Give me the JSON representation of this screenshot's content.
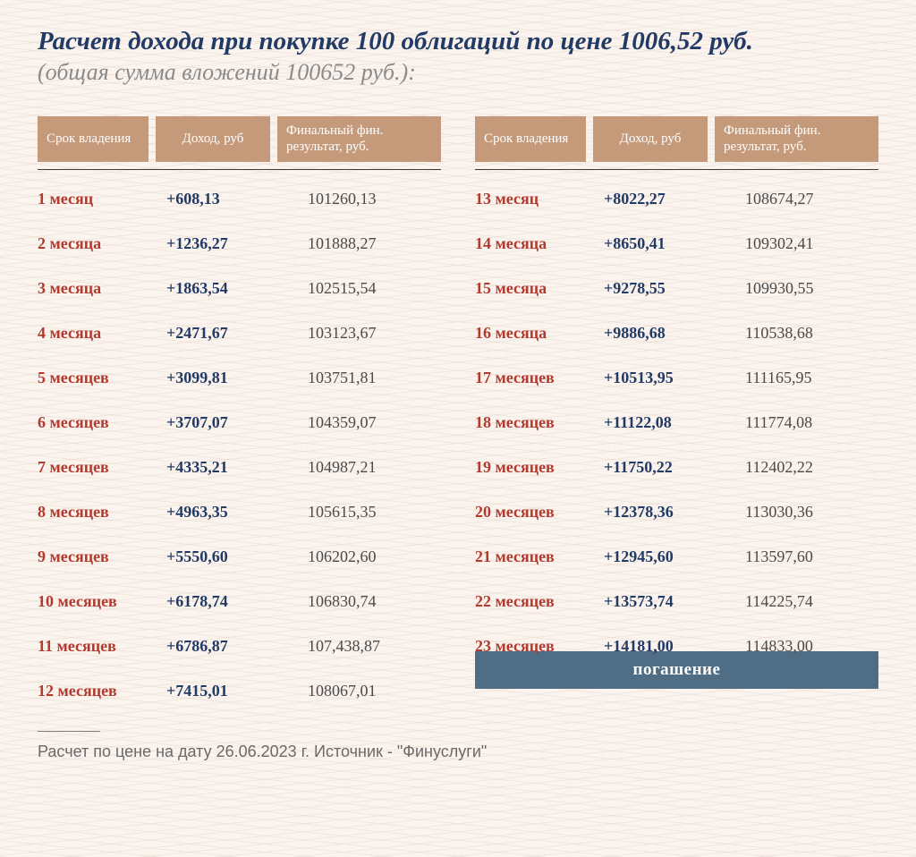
{
  "title": "Расчет дохода при покупке 100 облигаций по цене 1006,52 руб.",
  "subtitle": "(общая сумма вложений 100652 руб.):",
  "headers": {
    "period": "Срок владения",
    "income": "Доход, руб",
    "result": "Финальный фин. результат, руб."
  },
  "left": [
    {
      "period": "1 месяц",
      "income": "+608,13",
      "result": "101260,13"
    },
    {
      "period": "2 месяца",
      "income": "+1236,27",
      "result": "101888,27"
    },
    {
      "period": "3 месяца",
      "income": "+1863,54",
      "result": "102515,54"
    },
    {
      "period": "4 месяца",
      "income": "+2471,67",
      "result": "103123,67"
    },
    {
      "period": "5 месяцев",
      "income": "+3099,81",
      "result": "103751,81"
    },
    {
      "period": "6 месяцев",
      "income": "+3707,07",
      "result": "104359,07"
    },
    {
      "period": "7 месяцев",
      "income": "+4335,21",
      "result": "104987,21"
    },
    {
      "period": "8 месяцев",
      "income": "+4963,35",
      "result": "105615,35"
    },
    {
      "period": "9 месяцев",
      "income": "+5550,60",
      "result": "106202,60"
    },
    {
      "period": "10 месяцев",
      "income": "+6178,74",
      "result": "106830,74"
    },
    {
      "period": "11 месяцев",
      "income": "+6786,87",
      "result": "107,438,87"
    },
    {
      "period": "12 месяцев",
      "income": "+7415,01",
      "result": "108067,01"
    }
  ],
  "right": [
    {
      "period": "13 месяц",
      "income": "+8022,27",
      "result": "108674,27"
    },
    {
      "period": "14 месяца",
      "income": "+8650,41",
      "result": "109302,41"
    },
    {
      "period": "15 месяца",
      "income": "+9278,55",
      "result": "109930,55"
    },
    {
      "period": "16 месяца",
      "income": "+9886,68",
      "result": "110538,68"
    },
    {
      "period": "17 месяцев",
      "income": "+10513,95",
      "result": "111165,95"
    },
    {
      "period": "18 месяцев",
      "income": "+11122,08",
      "result": "111774,08"
    },
    {
      "period": "19 месяцев",
      "income": "+11750,22",
      "result": "112402,22"
    },
    {
      "period": "20 месяцев",
      "income": "+12378,36",
      "result": "113030,36"
    },
    {
      "period": "21 месяцев",
      "income": "+12945,60",
      "result": "113597,60"
    },
    {
      "period": "22 месяцев",
      "income": "+13573,74",
      "result": "114225,74"
    },
    {
      "period": "23 месяцев",
      "income": "+14181,00",
      "result": "114833,00"
    }
  ],
  "redemption": "погашение",
  "footnote": "Расчет по цене на дату 26.06.2023 г. Источник - \"Финуслуги\"",
  "style": {
    "background_color": "#faf3ee",
    "pattern_line_color": "rgba(210,185,165,0.22)",
    "title_color": "#223a66",
    "title_fontsize": 29,
    "subtitle_color": "#8a8a8a",
    "subtitle_fontsize": 26,
    "header_bg": "#c49a7a",
    "header_text_color": "#ffffff",
    "header_fontsize": 15,
    "separator_color": "#3a3a3a",
    "row_fontsize": 18,
    "period_color": "#b23a2f",
    "income_color": "#223a66",
    "result_color": "#4a4a4a",
    "redemption_bg": "#4f6e86",
    "redemption_color": "#ffffff",
    "footnote_color": "#6a6a6a",
    "footnote_fontsize": 18,
    "column_widths": {
      "c1": 124,
      "c2": 128
    },
    "row_gap": 29
  }
}
